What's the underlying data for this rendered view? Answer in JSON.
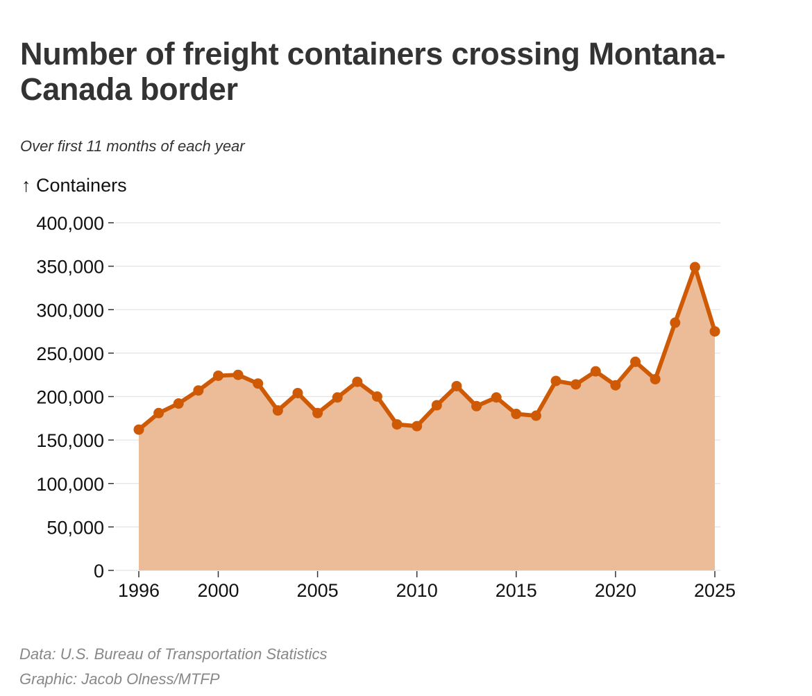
{
  "header": {
    "title": "Number of freight containers crossing Montana-Canada border",
    "subtitle": "Over first 11 months of each year",
    "y_axis_label": "↑ Containers"
  },
  "footer": {
    "source": "Data: U.S. Bureau of Transportation Statistics",
    "credit": "Graphic: Jacob Olness/MTFP"
  },
  "colors": {
    "line": "#cf5a06",
    "area": "#ebbc97",
    "grid": "#e4e4e4",
    "axis": "#333333",
    "text": "#111111"
  },
  "chart_data": {
    "type": "area",
    "title": "Number of freight containers crossing Montana-Canada border",
    "subtitle": "Over first 11 months of each year",
    "xlabel": "",
    "ylabel": "↑ Containers",
    "x": [
      1996,
      1997,
      1998,
      1999,
      2000,
      2001,
      2002,
      2003,
      2004,
      2005,
      2006,
      2007,
      2008,
      2009,
      2010,
      2011,
      2012,
      2013,
      2014,
      2015,
      2016,
      2017,
      2018,
      2019,
      2020,
      2021,
      2022,
      2023,
      2024,
      2025
    ],
    "series": [
      {
        "name": "Containers",
        "values": [
          162000,
          181000,
          192000,
          207000,
          224000,
          225000,
          215000,
          184000,
          204000,
          181000,
          199000,
          217000,
          200000,
          168000,
          166000,
          190000,
          212000,
          189000,
          199000,
          180000,
          178000,
          218000,
          214000,
          229000,
          213000,
          240000,
          220000,
          285000,
          349000,
          275000
        ]
      }
    ],
    "xlim": [
      1996,
      2025
    ],
    "ylim": [
      0,
      400000
    ],
    "x_ticks": [
      1996,
      2000,
      2005,
      2010,
      2015,
      2020,
      2025
    ],
    "x_tick_labels": [
      "1996",
      "2000",
      "2005",
      "2010",
      "2015",
      "2020",
      "2025"
    ],
    "y_ticks": [
      0,
      50000,
      100000,
      150000,
      200000,
      250000,
      300000,
      350000,
      400000
    ],
    "y_tick_labels": [
      "0",
      "50,000",
      "100,000",
      "150,000",
      "200,000",
      "250,000",
      "300,000",
      "350,000",
      "400,000"
    ],
    "grid": "horizontal",
    "legend": "none",
    "markers": true
  }
}
